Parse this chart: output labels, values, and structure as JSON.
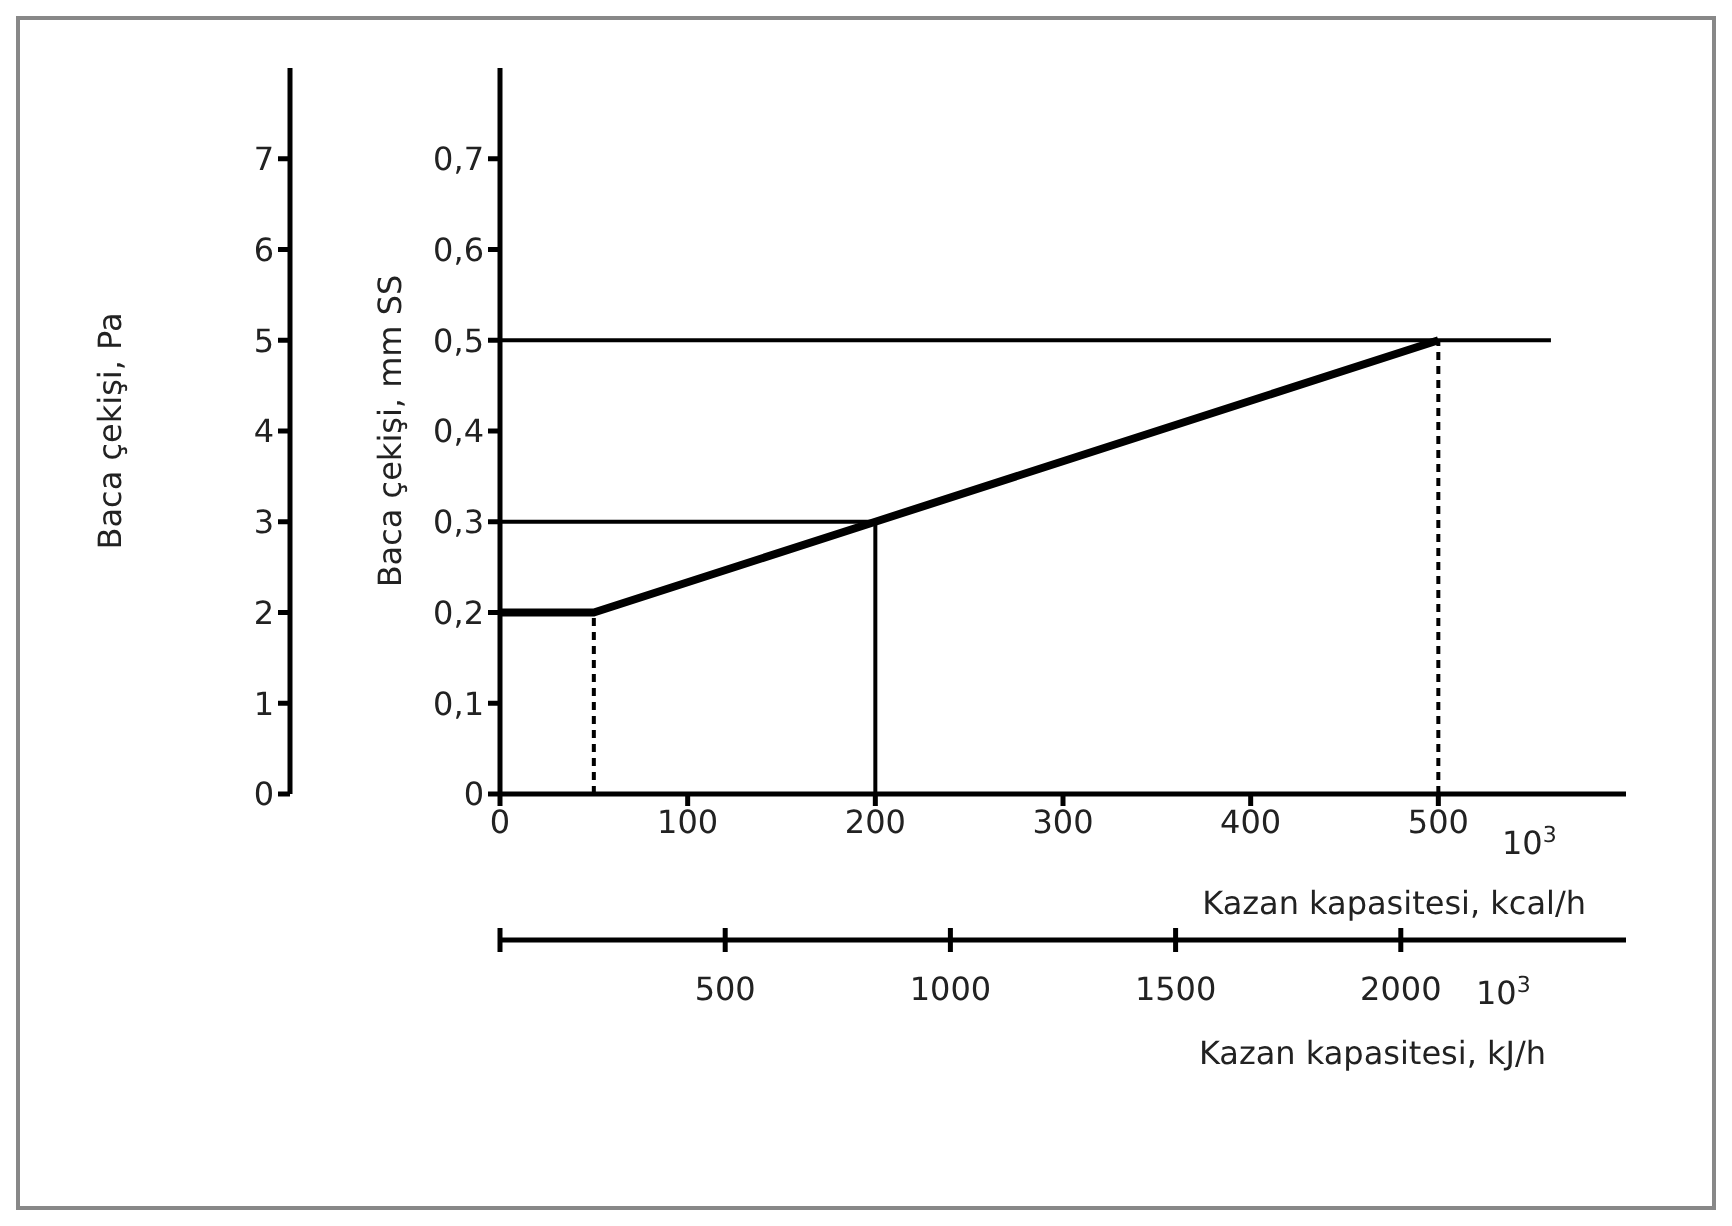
{
  "chart_data": {
    "type": "line",
    "xlabel": "Kazan kapasitesi, kcal/h",
    "x2label": "Kazan kapasitesi, kJ/h",
    "ylabel": "Baca çekişi, mm SS",
    "y2label": "Baca çekişi, Pa",
    "xlim": [
      0,
      600
    ],
    "xticks": [
      0,
      100,
      200,
      300,
      400,
      500
    ],
    "x2lim": [
      0,
      2500
    ],
    "x2ticks": [
      {
        "value": 0,
        "label": null
      },
      500,
      1000,
      1500,
      2000
    ],
    "ylim": [
      0,
      0.8
    ],
    "yticks": [
      0,
      {
        "value": 0.1,
        "label": "0,1"
      },
      {
        "value": 0.2,
        "label": "0,2"
      },
      {
        "value": 0.3,
        "label": "0,3"
      },
      {
        "value": 0.4,
        "label": "0,4"
      },
      {
        "value": 0.5,
        "label": "0,5"
      },
      {
        "value": 0.6,
        "label": "0,6"
      },
      {
        "value": 0.7,
        "label": "0,7"
      }
    ],
    "y2lim": [
      0,
      8
    ],
    "y2ticks": [
      0,
      1,
      2,
      3,
      4,
      5,
      6,
      7
    ],
    "annotations": [
      "10$^{3}$",
      "10$^{3}$"
    ],
    "series": [
      {
        "x": [
          0,
          50,
          200,
          500
        ],
        "values": [
          0.2,
          0.2,
          0.3,
          0.5
        ],
        "color": "#000000"
      },
      {
        "x": [
          0,
          560
        ],
        "values": [
          0.5,
          0.5
        ],
        "color": "#000000"
      },
      {
        "x": [
          0,
          200
        ],
        "values": [
          0.3,
          0.3
        ],
        "color": "#000000"
      },
      {
        "x": [
          200,
          200
        ],
        "values": [
          0,
          0.3
        ],
        "color": "#000000"
      },
      {
        "x": [
          50,
          50
        ],
        "values": [
          0,
          0.2
        ],
        "color": "#000000",
        "line_style": "dashed"
      },
      {
        "x": [
          500,
          500
        ],
        "values": [
          0,
          0.5
        ],
        "color": "#000000",
        "line_style": "dashed"
      }
    ]
  }
}
